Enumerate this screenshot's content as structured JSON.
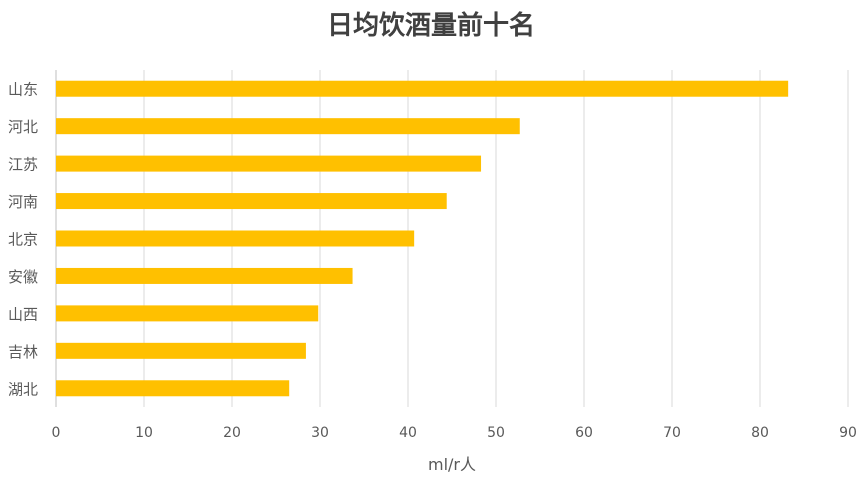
{
  "chart_data": {
    "type": "bar",
    "orientation": "horizontal",
    "title": "日均饮酒量前十名",
    "xlabel": "ml/r人",
    "ylabel": "",
    "categories": [
      "山东",
      "河北",
      "江苏",
      "河南",
      "北京",
      "安徽",
      "山西",
      "吉林",
      "湖北"
    ],
    "values": [
      83.2,
      52.7,
      48.3,
      44.4,
      40.7,
      33.7,
      29.8,
      28.4,
      26.5
    ],
    "xlim": [
      0,
      90
    ],
    "xticks": [
      "0",
      "10",
      "20",
      "30",
      "40",
      "50",
      "60",
      "70",
      "80",
      "90"
    ],
    "grid": true,
    "legend": "none",
    "bar_color": "#FFC000"
  }
}
